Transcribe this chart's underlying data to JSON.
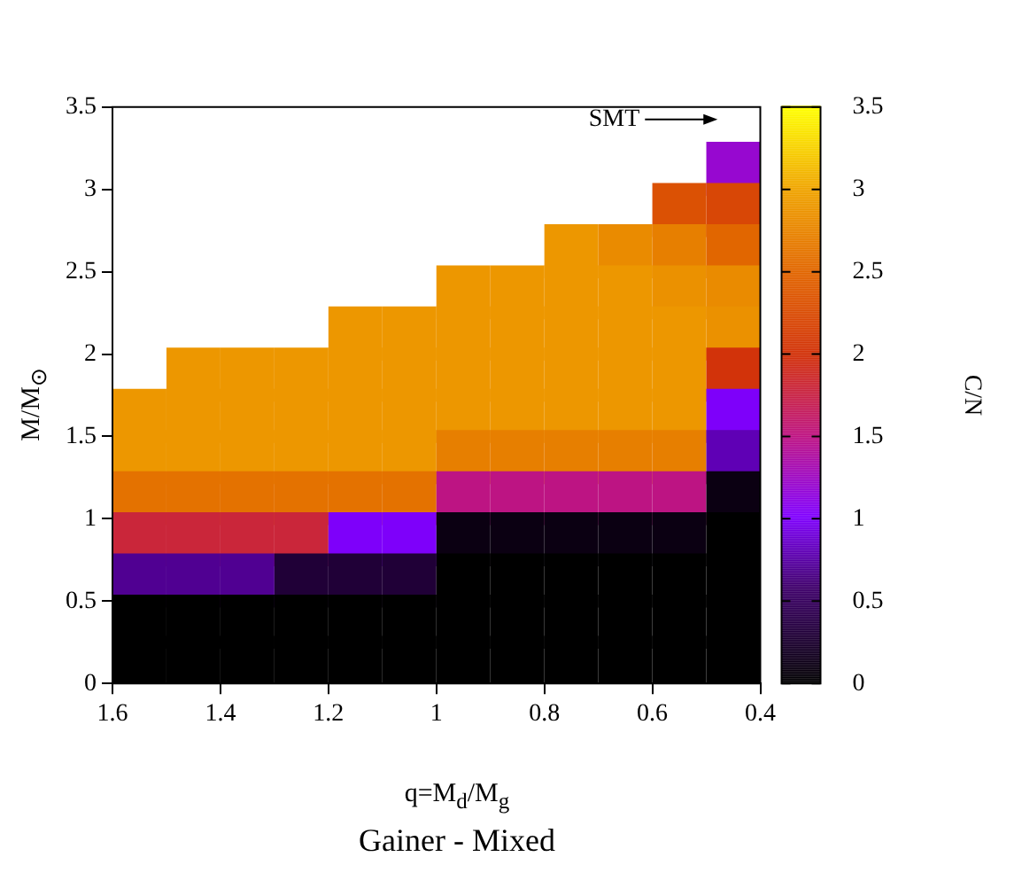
{
  "chart_data": {
    "type": "scatter",
    "title": "Gainer - Mixed",
    "xlabel": "q=M$_{d}$/M$_{g}$",
    "ylabel": "M/M$_{⊙}$",
    "clabel": "C/N",
    "xlim": [
      1.6,
      0.4
    ],
    "ylim": [
      0,
      3.5
    ],
    "xticks": [
      1.6,
      1.4,
      1.2,
      1,
      0.8,
      0.6,
      0.4
    ],
    "yticks": [
      0,
      0.5,
      1,
      1.5,
      2,
      2.5,
      3,
      3.5
    ],
    "clim": [
      0,
      3.5
    ],
    "cticks": [
      0,
      0.5,
      1,
      1.5,
      2,
      2.5,
      3,
      3.5
    ],
    "marker": "square",
    "x": [
      0.45,
      0.55,
      0.45,
      0.75,
      0.65,
      0.55,
      0.45,
      0.95,
      0.85,
      0.75,
      0.65,
      0.55,
      0.45,
      1.15,
      1.05,
      0.95,
      0.85,
      0.75,
      0.65,
      0.55,
      0.45,
      1.45,
      1.35,
      1.25,
      1.15,
      1.05,
      0.95,
      0.85,
      0.75,
      0.65,
      0.55,
      0.45,
      1.55,
      1.45,
      1.35,
      1.25,
      1.15,
      1.05,
      0.95,
      0.85,
      0.75,
      0.65,
      0.55,
      0.45,
      1.55,
      1.45,
      1.35,
      1.25,
      1.15,
      1.05,
      0.95,
      0.85,
      0.75,
      0.65,
      0.55,
      0.45,
      1.55,
      1.45,
      1.35,
      1.25,
      1.15,
      1.05,
      0.95,
      0.85,
      0.75,
      0.65,
      0.55,
      0.45,
      1.55,
      1.45,
      1.35,
      1.25,
      1.15,
      1.05,
      0.95,
      0.85,
      0.75,
      0.65,
      0.55,
      0.45,
      1.55,
      1.45,
      1.35,
      1.25,
      1.15,
      1.05,
      0.95,
      0.85,
      0.75,
      0.65,
      0.55,
      0.45,
      1.55,
      1.45,
      1.35,
      1.25,
      1.15,
      1.05,
      0.95,
      0.85,
      0.75,
      0.65,
      0.55,
      0.45,
      1.55,
      1.45,
      1.35,
      1.25,
      1.15,
      1.05,
      0.95,
      0.85,
      0.75,
      0.65,
      0.55,
      0.45
    ],
    "values": [
      3.125,
      2.875,
      2.875,
      2.625,
      2.625,
      2.625,
      2.625,
      2.375,
      2.375,
      2.375,
      2.375,
      2.375,
      2.375,
      2.125,
      2.125,
      2.125,
      2.125,
      2.125,
      2.125,
      2.125,
      2.125,
      1.875,
      1.875,
      1.875,
      1.875,
      1.875,
      1.875,
      1.875,
      1.875,
      1.875,
      1.875,
      1.875,
      1.625,
      1.625,
      1.625,
      1.625,
      1.625,
      1.625,
      1.625,
      1.625,
      1.625,
      1.625,
      1.625,
      1.625,
      1.375,
      1.375,
      1.375,
      1.375,
      1.375,
      1.375,
      1.375,
      1.375,
      1.375,
      1.375,
      1.375,
      1.375,
      1.125,
      1.125,
      1.125,
      1.125,
      1.125,
      1.125,
      1.125,
      1.125,
      1.125,
      1.125,
      1.125,
      1.125,
      0.875,
      0.875,
      0.875,
      0.875,
      0.875,
      0.875,
      0.875,
      0.875,
      0.875,
      0.875,
      0.875,
      0.875,
      0.625,
      0.625,
      0.625,
      0.625,
      0.625,
      0.625,
      0.625,
      0.625,
      0.625,
      0.625,
      0.625,
      0.625,
      0.375,
      0.375,
      0.375,
      0.375,
      0.375,
      0.375,
      0.375,
      0.375,
      0.375,
      0.375,
      0.375,
      0.375,
      0.125,
      0.125,
      0.125,
      0.125,
      0.125,
      0.125,
      0.125,
      0.125,
      0.125,
      0.125,
      0.125,
      0.125
    ],
    "cvalues": [
      1.2,
      2.3,
      2.2,
      2.9,
      2.8,
      2.7,
      2.5,
      2.9,
      2.9,
      2.9,
      2.9,
      2.85,
      2.8,
      2.9,
      2.9,
      2.9,
      2.9,
      2.9,
      2.9,
      2.9,
      2.85,
      2.9,
      2.9,
      2.9,
      2.9,
      2.9,
      2.9,
      2.9,
      2.9,
      2.9,
      2.9,
      2.0,
      2.9,
      2.9,
      2.9,
      2.9,
      2.9,
      2.9,
      2.9,
      2.9,
      2.9,
      2.9,
      2.9,
      1.0,
      2.9,
      2.9,
      2.9,
      2.9,
      2.9,
      2.9,
      2.7,
      2.7,
      2.7,
      2.7,
      2.7,
      0.8,
      2.6,
      2.6,
      2.6,
      2.6,
      2.6,
      2.6,
      1.5,
      1.5,
      1.5,
      1.5,
      1.5,
      0.1,
      1.8,
      1.8,
      1.8,
      1.8,
      1.0,
      1.0,
      0.1,
      0.1,
      0.1,
      0.1,
      0.1,
      0,
      0.7,
      0.7,
      0.7,
      0.3,
      0.3,
      0.3,
      0,
      0,
      0,
      0,
      0,
      0,
      0,
      0,
      0,
      0,
      0,
      0,
      0,
      0,
      0,
      0,
      0,
      0,
      0,
      0,
      0,
      0,
      0,
      0,
      0,
      0,
      0,
      0,
      0,
      0
    ],
    "annotations": [
      "SMT"
    ],
    "grid": false
  }
}
